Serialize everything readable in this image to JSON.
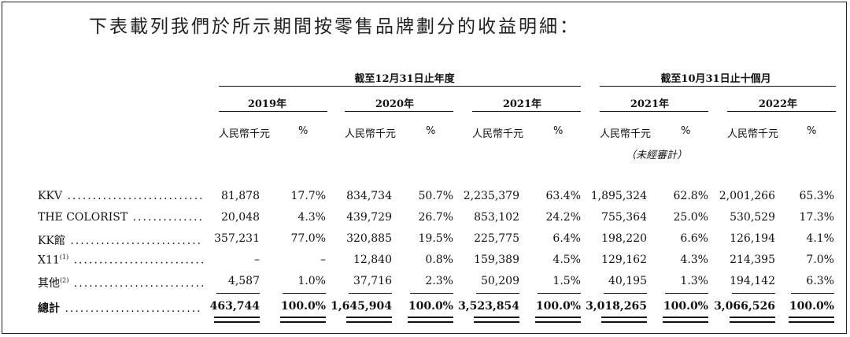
{
  "intro": "下表載列我們於所示期間按零售品牌劃分的收益明細：",
  "groups": {
    "year_end": "截至12月31日止年度",
    "ten_months": "截至10月31日止十個月"
  },
  "years": [
    "2019年",
    "2020年",
    "2021年",
    "2021年",
    "2022年"
  ],
  "unit_label": "人民幣千元",
  "pct_label": "%",
  "unaudited": "（未經審計）",
  "rows": [
    {
      "label": "KKV",
      "sup": "",
      "values": [
        "81,878",
        "17.7%",
        "834,734",
        "50.7%",
        "2,235,379",
        "63.4%",
        "1,895,324",
        "62.8%",
        "2,001,266",
        "65.3%"
      ]
    },
    {
      "label": "THE COLORIST",
      "sup": "",
      "values": [
        "20,048",
        "4.3%",
        "439,729",
        "26.7%",
        "853,102",
        "24.2%",
        "755,364",
        "25.0%",
        "530,529",
        "17.3%"
      ]
    },
    {
      "label": "KK館",
      "sup": "",
      "values": [
        "357,231",
        "77.0%",
        "320,885",
        "19.5%",
        "225,775",
        "6.4%",
        "198,220",
        "6.6%",
        "126,194",
        "4.1%"
      ]
    },
    {
      "label": "X11",
      "sup": "(1)",
      "values": [
        "–",
        "–",
        "12,840",
        "0.8%",
        "159,389",
        "4.5%",
        "129,162",
        "4.3%",
        "214,395",
        "7.0%"
      ]
    },
    {
      "label": "其他",
      "sup": "(2)",
      "values": [
        "4,587",
        "1.0%",
        "37,716",
        "2.3%",
        "50,209",
        "1.5%",
        "40,195",
        "1.3%",
        "194,142",
        "6.3%"
      ]
    }
  ],
  "total": {
    "label": "總計",
    "values": [
      "463,744",
      "100.0%",
      "1,645,904",
      "100.0%",
      "3,523,854",
      "100.0%",
      "3,018,265",
      "100.0%",
      "3,066,526",
      "100.0%"
    ]
  }
}
